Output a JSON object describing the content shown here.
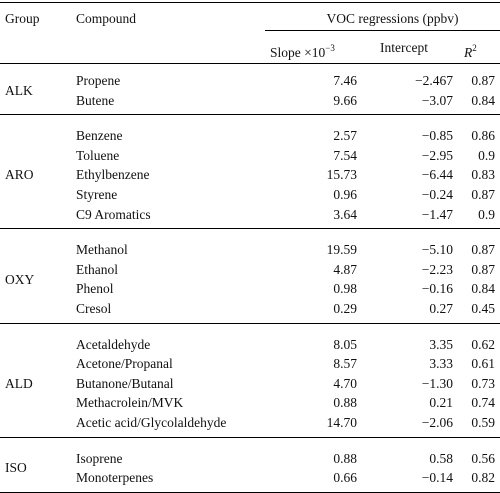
{
  "headers": {
    "group": "Group",
    "compound": "Compound",
    "voc": "VOC regressions (ppbv)",
    "slope": "Slope ×10",
    "slope_exp": "−3",
    "intercept": "Intercept",
    "r2": "R",
    "r2_exp": "2"
  },
  "groups": [
    {
      "name": "ALK",
      "rows": [
        {
          "compound": "Propene",
          "slope": "7.46",
          "intercept": "−2.467",
          "r2": "0.87"
        },
        {
          "compound": "Butene",
          "slope": "9.66",
          "intercept": "−3.07",
          "r2": "0.84"
        }
      ]
    },
    {
      "name": "ARO",
      "rows": [
        {
          "compound": "Benzene",
          "slope": "2.57",
          "intercept": "−0.85",
          "r2": "0.86"
        },
        {
          "compound": "Toluene",
          "slope": "7.54",
          "intercept": "−2.95",
          "r2": "0.9"
        },
        {
          "compound": "Ethylbenzene",
          "slope": "15.73",
          "intercept": "−6.44",
          "r2": "0.83"
        },
        {
          "compound": "Styrene",
          "slope": "0.96",
          "intercept": "−0.24",
          "r2": "0.87"
        },
        {
          "compound": "C9 Aromatics",
          "slope": "3.64",
          "intercept": "−1.47",
          "r2": "0.9"
        }
      ]
    },
    {
      "name": "OXY",
      "rows": [
        {
          "compound": "Methanol",
          "slope": "19.59",
          "intercept": "−5.10",
          "r2": "0.87"
        },
        {
          "compound": "Ethanol",
          "slope": "4.87",
          "intercept": "−2.23",
          "r2": "0.87"
        },
        {
          "compound": "Phenol",
          "slope": "0.98",
          "intercept": "−0.16",
          "r2": "0.84"
        },
        {
          "compound": "Cresol",
          "slope": "0.29",
          "intercept": "0.27",
          "r2": "0.45"
        }
      ]
    },
    {
      "name": "ALD",
      "rows": [
        {
          "compound": "Acetaldehyde",
          "slope": "8.05",
          "intercept": "3.35",
          "r2": "0.62"
        },
        {
          "compound": "Acetone/Propanal",
          "slope": "8.57",
          "intercept": "3.33",
          "r2": "0.61"
        },
        {
          "compound": "Butanone/Butanal",
          "slope": "4.70",
          "intercept": "−1.30",
          "r2": "0.73"
        },
        {
          "compound": "Methacrolein/MVK",
          "slope": "0.88",
          "intercept": "0.21",
          "r2": "0.74"
        },
        {
          "compound": "Acetic acid/Glycolaldehyde",
          "slope": "14.70",
          "intercept": "−2.06",
          "r2": "0.59"
        }
      ]
    },
    {
      "name": "ISO",
      "rows": [
        {
          "compound": "Isoprene",
          "slope": "0.88",
          "intercept": "0.58",
          "r2": "0.56"
        },
        {
          "compound": "Monoterpenes",
          "slope": "0.66",
          "intercept": "−0.14",
          "r2": "0.82"
        }
      ]
    }
  ]
}
